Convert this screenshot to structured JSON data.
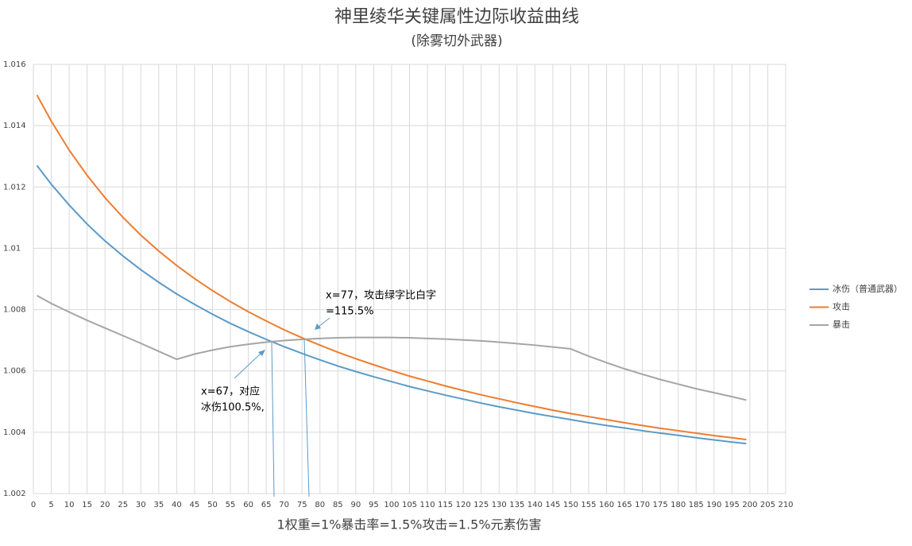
{
  "chart_data": {
    "type": "line",
    "title": "神里绫华关键属性边际收益曲线",
    "subtitle": "(除雾切外武器)",
    "x_label": "1权重=1%暴击率=1.5%攻击=1.5%元素伤害",
    "x": [
      1,
      5,
      10,
      15,
      20,
      25,
      30,
      35,
      40,
      45,
      50,
      55,
      60,
      65,
      70,
      75,
      80,
      85,
      90,
      95,
      100,
      105,
      110,
      115,
      120,
      125,
      130,
      135,
      140,
      145,
      150,
      155,
      160,
      165,
      170,
      175,
      180,
      185,
      190,
      195,
      199
    ],
    "series": [
      {
        "name": "冰伤（普通武器）",
        "color": "#5b9bc8",
        "values": [
          1.0127,
          1.01209,
          1.01141,
          1.01079,
          1.01024,
          1.00975,
          1.0093,
          1.00889,
          1.00851,
          1.00817,
          1.00785,
          1.00755,
          1.00728,
          1.00703,
          1.00679,
          1.00657,
          1.00636,
          1.00616,
          1.00598,
          1.00581,
          1.00565,
          1.00549,
          1.00535,
          1.00521,
          1.00508,
          1.00495,
          1.00483,
          1.00472,
          1.00461,
          1.00451,
          1.00441,
          1.00431,
          1.00422,
          1.00414,
          1.00405,
          1.00397,
          1.0039,
          1.00382,
          1.00375,
          1.00368,
          1.00363
        ]
      },
      {
        "name": "攻击",
        "color": "#ed7d31",
        "values": [
          1.015,
          1.01415,
          1.0132,
          1.01238,
          1.01165,
          1.01101,
          1.01043,
          1.00991,
          1.00944,
          1.00901,
          1.00862,
          1.00826,
          1.00793,
          1.00763,
          1.00734,
          1.00708,
          1.00684,
          1.00661,
          1.0064,
          1.0062,
          1.00601,
          1.00583,
          1.00567,
          1.00551,
          1.00536,
          1.00522,
          1.00509,
          1.00496,
          1.00484,
          1.00472,
          1.00461,
          1.00451,
          1.00441,
          1.00431,
          1.00422,
          1.00413,
          1.00405,
          1.00397,
          1.00389,
          1.00382,
          1.00376
        ]
      },
      {
        "name": "暴击",
        "color": "#a5a5a5",
        "values": [
          1.00846,
          1.0082,
          1.00792,
          1.00765,
          1.0074,
          1.00715,
          1.0069,
          1.00664,
          1.00638,
          1.00655,
          1.00668,
          1.00679,
          1.00687,
          1.00694,
          1.00699,
          1.00703,
          1.00706,
          1.00708,
          1.00709,
          1.00709,
          1.00709,
          1.00708,
          1.00706,
          1.00704,
          1.00701,
          1.00698,
          1.00694,
          1.00689,
          1.00684,
          1.00678,
          1.00672,
          1.00648,
          1.00627,
          1.00607,
          1.00589,
          1.00572,
          1.00557,
          1.00542,
          1.00529,
          1.00516,
          1.00505
        ]
      }
    ],
    "xlim": [
      0,
      210
    ],
    "xticks": [
      0,
      5,
      10,
      15,
      20,
      25,
      30,
      35,
      40,
      45,
      50,
      55,
      60,
      65,
      70,
      75,
      80,
      85,
      90,
      95,
      100,
      105,
      110,
      115,
      120,
      125,
      130,
      135,
      140,
      145,
      150,
      155,
      160,
      165,
      170,
      175,
      180,
      185,
      190,
      195,
      200,
      205,
      210
    ],
    "ylim": [
      1.002,
      1.016
    ],
    "yticks": [
      1.002,
      1.004,
      1.006,
      1.008,
      1.01,
      1.012,
      1.014,
      1.016
    ],
    "grid": true,
    "legend": "right",
    "annotations": [
      {
        "lines": [
          "x=77，攻击绿字比白字",
          "=115.5%"
        ]
      },
      {
        "lines": [
          "x=67，对应",
          "冰伤100.5%,"
        ]
      }
    ]
  }
}
